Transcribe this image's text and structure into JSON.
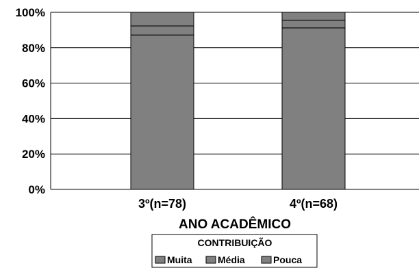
{
  "chart_data": {
    "type": "bar",
    "stacked": true,
    "percent": true,
    "categories": [
      "3º(n=78)",
      "4º(n=68)"
    ],
    "series": [
      {
        "name": "Muita",
        "values": [
          87.2,
          91.2
        ]
      },
      {
        "name": "Média",
        "values": [
          5.1,
          4.4
        ]
      },
      {
        "name": "Pouca",
        "values": [
          7.7,
          4.4
        ]
      }
    ],
    "yticks": [
      "0%",
      "20%",
      "40%",
      "60%",
      "80%",
      "100%"
    ],
    "ylim": [
      0,
      100
    ],
    "xlabel": "ANO ACADÊMICO",
    "ylabel": "",
    "legend": {
      "title": "CONTRIBUIÇÃO",
      "placement": "bottom-center"
    },
    "grid": true,
    "colors": {
      "bar_fill": "#808080",
      "bar_stroke": "#000000",
      "grid": "#000000",
      "legend_swatch": "#808080"
    }
  }
}
